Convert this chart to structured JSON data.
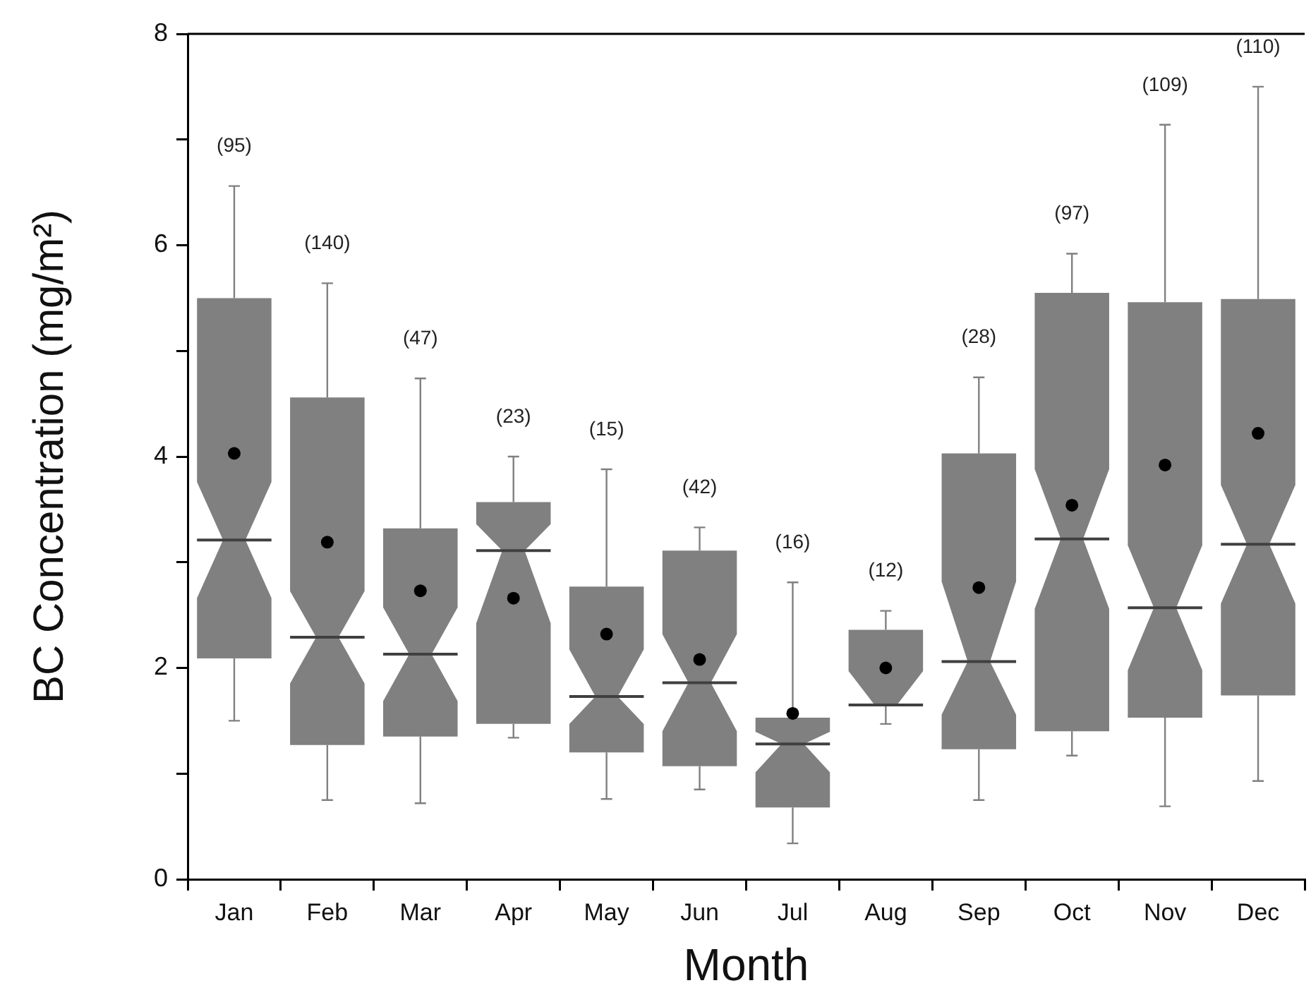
{
  "chart_data": {
    "type": "box",
    "xlabel": "Month",
    "ylabel": "BC Concentration (mg/m²)",
    "categories": [
      "Jan",
      "Feb",
      "Mar",
      "Apr",
      "May",
      "Jun",
      "Jul",
      "Aug",
      "Sep",
      "Oct",
      "Nov",
      "Dec"
    ],
    "color": "#808080",
    "marker": "circle",
    "boxes": [
      {
        "low": 1.5,
        "q1": 2.09,
        "median": 3.21,
        "q3": 5.5,
        "high": 6.56,
        "mean": 4.03
      },
      {
        "low": 0.75,
        "q1": 1.27,
        "median": 2.29,
        "q3": 4.56,
        "high": 5.64,
        "mean": 3.19
      },
      {
        "low": 0.72,
        "q1": 1.35,
        "median": 2.13,
        "q3": 3.32,
        "high": 4.74,
        "mean": 2.73
      },
      {
        "low": 1.34,
        "q1": 1.47,
        "median": 3.11,
        "q3": 3.57,
        "high": 4.0,
        "mean": 2.66
      },
      {
        "low": 0.76,
        "q1": 1.2,
        "median": 1.73,
        "q3": 2.77,
        "high": 3.88,
        "mean": 2.32
      },
      {
        "low": 0.85,
        "q1": 1.07,
        "median": 1.86,
        "q3": 3.11,
        "high": 3.33,
        "mean": 2.08
      },
      {
        "low": 0.34,
        "q1": 0.68,
        "median": 1.28,
        "q3": 1.53,
        "high": 2.81,
        "mean": 1.57
      },
      {
        "low": 1.47,
        "q1": 1.65,
        "median": 1.65,
        "q3": 2.36,
        "high": 2.54,
        "mean": 2.0
      },
      {
        "low": 0.75,
        "q1": 1.23,
        "median": 2.06,
        "q3": 4.03,
        "high": 4.75,
        "mean": 2.76
      },
      {
        "low": 1.17,
        "q1": 1.4,
        "median": 3.22,
        "q3": 5.55,
        "high": 5.92,
        "mean": 3.54
      },
      {
        "low": 0.69,
        "q1": 1.53,
        "median": 2.57,
        "q3": 5.46,
        "high": 7.14,
        "mean": 3.92
      },
      {
        "low": 0.93,
        "q1": 1.74,
        "median": 3.17,
        "q3": 5.49,
        "high": 7.5,
        "mean": 4.22
      }
    ],
    "ylim": [
      0,
      8
    ],
    "yticks": [
      0,
      {
        "value": 1,
        "label": null
      },
      2,
      {
        "value": 3,
        "label": null
      },
      4,
      {
        "value": 5,
        "label": null
      },
      6,
      {
        "value": 7,
        "label": null
      },
      8
    ],
    "annotations": [
      "(95)",
      "(140)",
      "(47)",
      "(23)",
      "(15)",
      "(42)",
      "(16)",
      "(12)",
      "(28)",
      "(97)",
      "(109)",
      "(110)"
    ]
  }
}
